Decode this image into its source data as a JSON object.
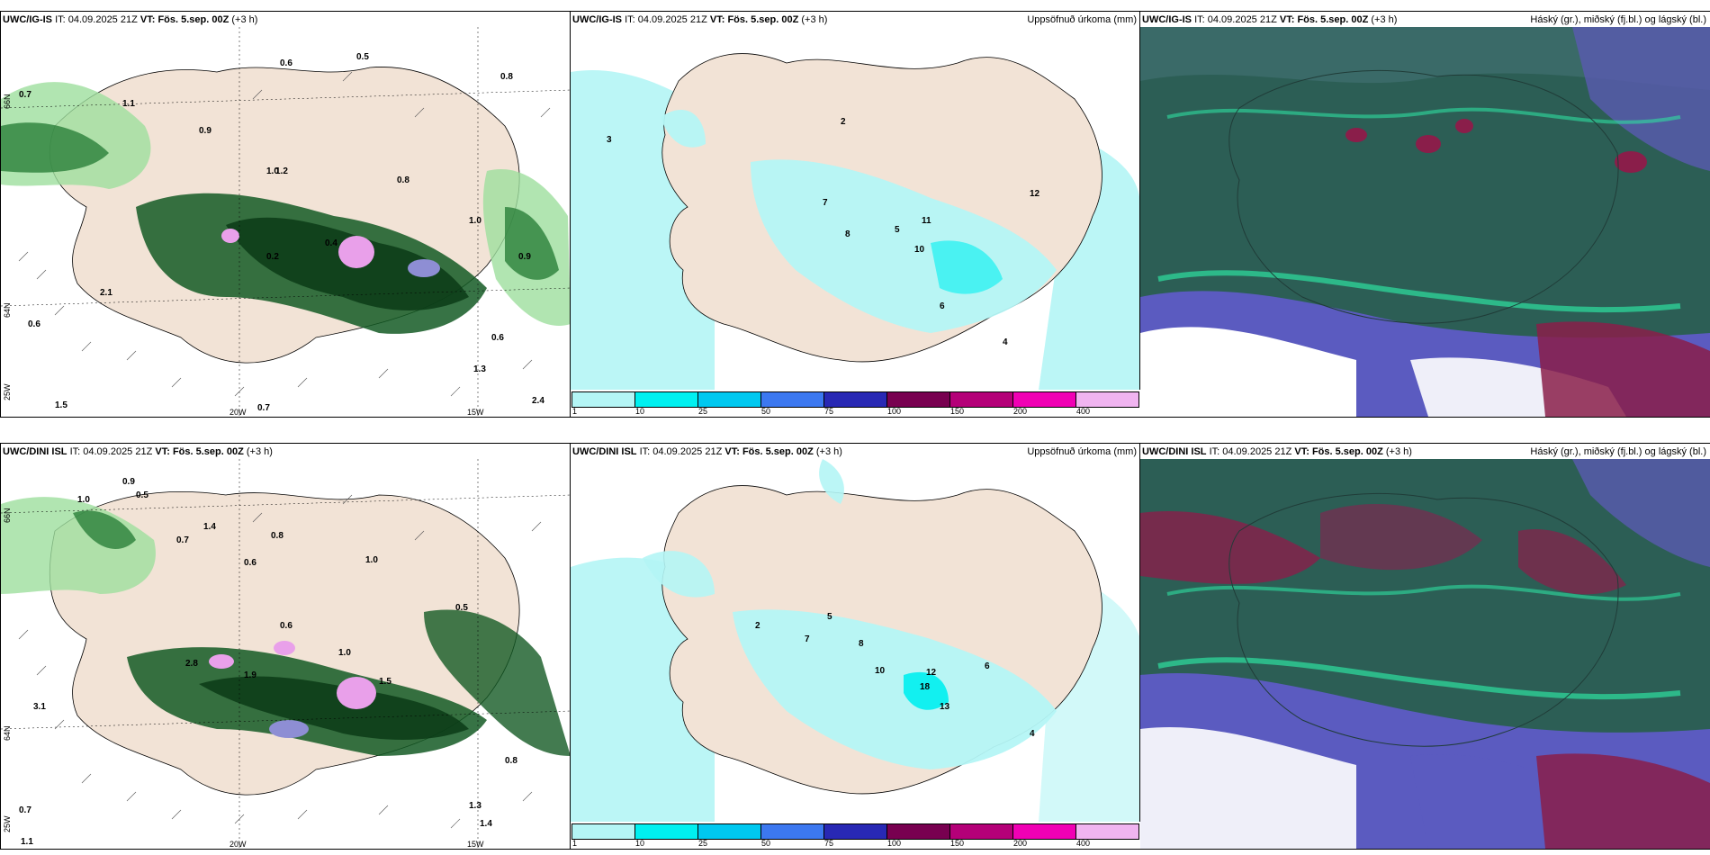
{
  "panels": [
    {
      "model": "UWC/IG-IS",
      "it_label": "IT:",
      "issue_time": "04.09.2025 21Z",
      "vt_label": "VT:",
      "valid_time": "Fös. 5.sep. 00Z",
      "lead": "(+3 h)",
      "right_title": ""
    },
    {
      "model": "UWC/IG-IS",
      "it_label": "IT:",
      "issue_time": "04.09.2025 21Z",
      "vt_label": "VT:",
      "valid_time": "Fös. 5.sep. 00Z",
      "lead": "(+3 h)",
      "right_title": "Uppsöfnuð úrkoma (mm)"
    },
    {
      "model": "UWC/IG-IS",
      "it_label": "IT:",
      "issue_time": "04.09.2025 21Z",
      "vt_label": "VT:",
      "valid_time": "Fös. 5.sep. 00Z",
      "lead": "(+3 h)",
      "right_title": "Háský (gr.), miðský (fj.bl.) og lágský (bl.)"
    },
    {
      "model": "UWC/DINI ISL",
      "it_label": "IT:",
      "issue_time": "04.09.2025 21Z",
      "vt_label": "VT:",
      "valid_time": "Fös. 5.sep. 00Z",
      "lead": "(+3 h)",
      "right_title": ""
    },
    {
      "model": "UWC/DINI ISL",
      "it_label": "IT:",
      "issue_time": "04.09.2025 21Z",
      "vt_label": "VT:",
      "valid_time": "Fös. 5.sep. 00Z",
      "lead": "(+3 h)",
      "right_title": "Uppsöfnuð úrkoma (mm)"
    },
    {
      "model": "UWC/DINI ISL",
      "it_label": "IT:",
      "issue_time": "04.09.2025 21Z",
      "vt_label": "VT:",
      "valid_time": "Fös. 5.sep. 00Z",
      "lead": "(+3 h)",
      "right_title": "Háský (gr.), miðský (fj.bl.) og lágský (bl.)"
    }
  ],
  "axes": {
    "lon_20w": "20W",
    "lon_15w": "15W",
    "lat_66n": "66N",
    "lat_64n": "64N",
    "lon_25w": "25W"
  },
  "legend": {
    "ticks": [
      "1",
      "10",
      "25",
      "50",
      "75",
      "100",
      "150",
      "200",
      "400"
    ],
    "colors": [
      "#b4f5f5",
      "#00f0f0",
      "#00c8f0",
      "#3c78f0",
      "#2828b4",
      "#780050",
      "#b40078",
      "#f000b4",
      "#f0b4f0"
    ]
  },
  "precip_labels_top": [
    "0.7",
    "0.6",
    "0.5",
    "0.8",
    "1.1",
    "1.0",
    "0.9",
    "0.8",
    "1.2",
    "1.0",
    "0.2",
    "0.4",
    "0.6",
    "2.1",
    "0.6",
    "0.9",
    "1.3",
    "2.4",
    "1.5",
    "0.7"
  ],
  "precip_labels_bottom": [
    "0.9",
    "0.5",
    "1.0",
    "0.6",
    "0.8",
    "1.4",
    "0.7",
    "1.0",
    "0.5",
    "2.8",
    "1.9",
    "1.0",
    "0.6",
    "1.5",
    "3.1",
    "0.7",
    "1.1",
    "1.3",
    "1.4",
    "0.8"
  ],
  "accum_labels_top": [
    "3",
    "5",
    "2",
    "7",
    "8",
    "11",
    "10",
    "12",
    "6",
    "4"
  ],
  "accum_labels_bottom": [
    "2",
    "5",
    "7",
    "8",
    "10",
    "12",
    "18",
    "13",
    "6",
    "4"
  ]
}
